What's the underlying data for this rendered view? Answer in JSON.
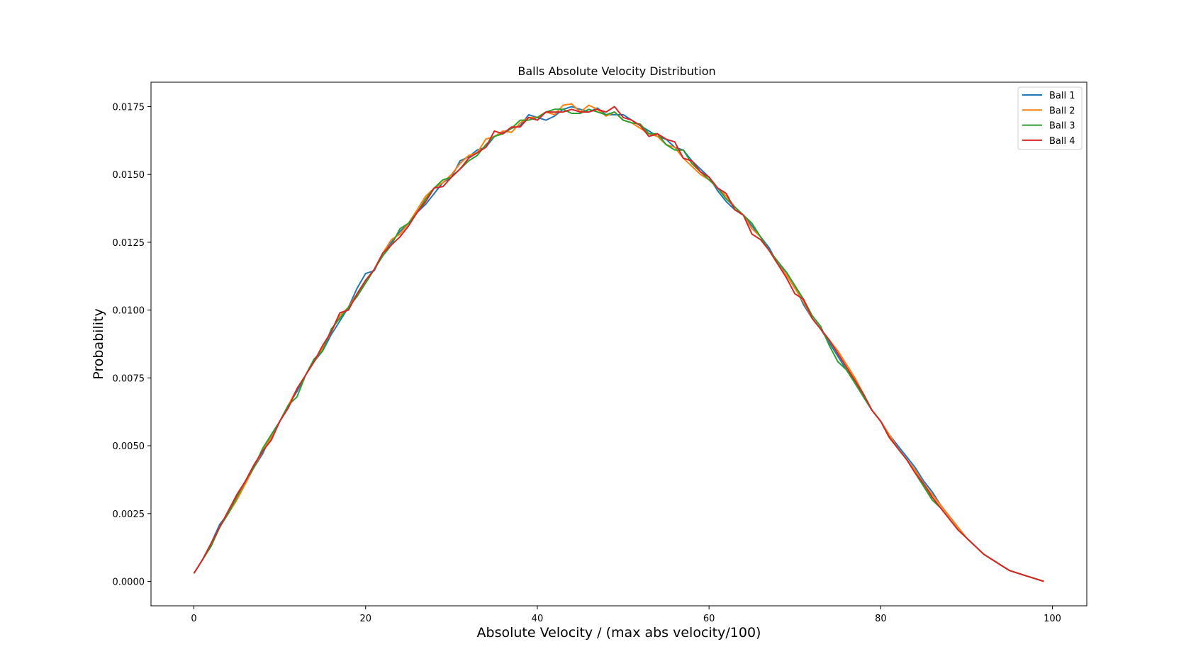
{
  "chart_data": {
    "type": "line",
    "title": "Balls Absolute Velocity Distribution",
    "xlabel": "Absolute Velocity / (max abs velocity/100)",
    "ylabel": "Probability",
    "xlim": [
      -5,
      104
    ],
    "ylim": [
      -0.0009,
      0.0184
    ],
    "xticks": [
      0,
      20,
      40,
      60,
      80,
      100
    ],
    "xtick_labels": [
      "0",
      "20",
      "40",
      "60",
      "80",
      "100"
    ],
    "yticks": [
      0,
      0.0025,
      0.005,
      0.0075,
      0.01,
      0.0125,
      0.015,
      0.0175
    ],
    "ytick_labels": [
      "0.0000",
      "0.0025",
      "0.0050",
      "0.0075",
      "0.0100",
      "0.0125",
      "0.0150",
      "0.0175"
    ],
    "grid": false,
    "legend_position": "top-right",
    "x": [
      0,
      1,
      2,
      3,
      4,
      5,
      6,
      7,
      8,
      9,
      10,
      11,
      12,
      13,
      14,
      15,
      16,
      17,
      18,
      19,
      20,
      21,
      22,
      23,
      24,
      25,
      26,
      27,
      28,
      29,
      30,
      31,
      32,
      33,
      34,
      35,
      36,
      37,
      38,
      39,
      40,
      41,
      42,
      43,
      44,
      45,
      46,
      47,
      48,
      49,
      50,
      51,
      52,
      53,
      54,
      55,
      56,
      57,
      58,
      59,
      60,
      61,
      62,
      63,
      64,
      65,
      66,
      67,
      68,
      69,
      70,
      71,
      72,
      73,
      74,
      75,
      76,
      77,
      78,
      79,
      80,
      81,
      82,
      83,
      84,
      85,
      86,
      87,
      88,
      89,
      90,
      91,
      92,
      93,
      94,
      95,
      96,
      97,
      98,
      99
    ],
    "series": [
      {
        "name": "Ball 1",
        "color": "#1f77b4",
        "values": [
          0.0003,
          0.0008,
          0.0014,
          0.0021,
          0.0025,
          0.0031,
          0.0037,
          0.0042,
          0.0047,
          0.0054,
          0.0059,
          0.0065,
          0.007,
          0.0076,
          0.0081,
          0.0085,
          0.0091,
          0.0096,
          0.0101,
          0.0108,
          0.01135,
          0.01145,
          0.0121,
          0.0125,
          0.0129,
          0.0132,
          0.0136,
          0.0139,
          0.0143,
          0.0147,
          0.0149,
          0.0155,
          0.01565,
          0.0159,
          0.016,
          0.0164,
          0.01655,
          0.0167,
          0.0168,
          0.0172,
          0.0171,
          0.017,
          0.01715,
          0.0174,
          0.0175,
          0.0174,
          0.0173,
          0.01745,
          0.0172,
          0.0172,
          0.0172,
          0.017,
          0.0168,
          0.0166,
          0.0164,
          0.0163,
          0.016,
          0.0159,
          0.0155,
          0.0152,
          0.0149,
          0.0144,
          0.014,
          0.0137,
          0.0135,
          0.0131,
          0.0127,
          0.0123,
          0.0117,
          0.0114,
          0.0109,
          0.0102,
          0.0097,
          0.0093,
          0.0088,
          0.0083,
          0.0078,
          0.0074,
          0.0068,
          0.0063,
          0.0059,
          0.0054,
          0.005,
          0.0046,
          0.0042,
          0.0037,
          0.0033,
          0.0028,
          0.0024,
          0.002,
          0.0016,
          0.0013,
          0.001,
          0.0008,
          0.0006,
          0.0004,
          0.0003,
          0.0002,
          0.0001,
          0.0
        ]
      },
      {
        "name": "Ball 2",
        "color": "#ff7f0e",
        "values": [
          0.0003,
          0.0008,
          0.0013,
          0.002,
          0.0025,
          0.003,
          0.0036,
          0.0042,
          0.0048,
          0.0053,
          0.0059,
          0.0065,
          0.0071,
          0.0076,
          0.0081,
          0.0086,
          0.0092,
          0.0098,
          0.0101,
          0.0106,
          0.011,
          0.0115,
          0.0121,
          0.0126,
          0.0128,
          0.0132,
          0.0137,
          0.0142,
          0.0145,
          0.0147,
          0.015,
          0.0154,
          0.0157,
          0.0158,
          0.0163,
          0.0164,
          0.0166,
          0.01655,
          0.0169,
          0.0171,
          0.0171,
          0.0173,
          0.0172,
          0.01755,
          0.0176,
          0.0173,
          0.01755,
          0.0174,
          0.01715,
          0.0173,
          0.017,
          0.0169,
          0.0167,
          0.0165,
          0.0164,
          0.0161,
          0.016,
          0.0156,
          0.0153,
          0.015,
          0.0148,
          0.0145,
          0.0142,
          0.0138,
          0.0135,
          0.013,
          0.0127,
          0.0122,
          0.0117,
          0.0113,
          0.0108,
          0.0103,
          0.0097,
          0.0093,
          0.0089,
          0.0085,
          0.008,
          0.0075,
          0.0069,
          0.0063,
          0.0059,
          0.0054,
          0.0049,
          0.0045,
          0.0041,
          0.0036,
          0.0032,
          0.0028,
          0.0024,
          0.002,
          0.0016,
          0.0013,
          0.001,
          0.0008,
          0.0006,
          0.0004,
          0.0003,
          0.0002,
          0.0001,
          0.0
        ]
      },
      {
        "name": "Ball 3",
        "color": "#2ca02c",
        "values": [
          0.0003,
          0.0008,
          0.0013,
          0.002,
          0.0025,
          0.0031,
          0.0037,
          0.0042,
          0.0049,
          0.0054,
          0.0059,
          0.0065,
          0.0068,
          0.0076,
          0.0082,
          0.0085,
          0.0093,
          0.0097,
          0.0101,
          0.0105,
          0.011,
          0.0115,
          0.012,
          0.0124,
          0.013,
          0.0132,
          0.0136,
          0.0141,
          0.0145,
          0.0148,
          0.0149,
          0.0152,
          0.0155,
          0.0157,
          0.0161,
          0.0164,
          0.0165,
          0.0167,
          0.017,
          0.017,
          0.0171,
          0.0173,
          0.0174,
          0.0174,
          0.01725,
          0.01725,
          0.0174,
          0.0173,
          0.0172,
          0.0173,
          0.017,
          0.0169,
          0.01685,
          0.0165,
          0.0165,
          0.0161,
          0.0159,
          0.0159,
          0.0154,
          0.0151,
          0.0148,
          0.0145,
          0.0141,
          0.0138,
          0.0135,
          0.0132,
          0.0127,
          0.0122,
          0.0118,
          0.0114,
          0.0109,
          0.0104,
          0.0098,
          0.0094,
          0.0087,
          0.0081,
          0.0078,
          0.0073,
          0.0068,
          0.0063,
          0.0059,
          0.0053,
          0.0049,
          0.0045,
          0.004,
          0.0035,
          0.003,
          0.0027,
          0.0023,
          0.0019,
          0.0016,
          0.0013,
          0.001,
          0.0008,
          0.0006,
          0.0004,
          0.0003,
          0.0002,
          0.0001,
          0.0
        ]
      },
      {
        "name": "Ball 4",
        "color": "#d62728",
        "values": [
          0.0003,
          0.0008,
          0.0014,
          0.002,
          0.0026,
          0.0032,
          0.0037,
          0.0043,
          0.0048,
          0.0052,
          0.0059,
          0.0064,
          0.0071,
          0.0076,
          0.0081,
          0.0087,
          0.0092,
          0.0099,
          0.01,
          0.0106,
          0.0111,
          0.0115,
          0.0121,
          0.0124,
          0.0127,
          0.0131,
          0.0136,
          0.014,
          0.0145,
          0.01455,
          0.0149,
          0.0152,
          0.0156,
          0.0158,
          0.016,
          0.0166,
          0.0165,
          0.01675,
          0.01675,
          0.0171,
          0.017,
          0.0173,
          0.0173,
          0.0173,
          0.0174,
          0.0173,
          0.0173,
          0.0174,
          0.0173,
          0.0175,
          0.0171,
          0.017,
          0.0168,
          0.0164,
          0.0165,
          0.0163,
          0.0162,
          0.0156,
          0.0155,
          0.0151,
          0.0149,
          0.0145,
          0.0143,
          0.0137,
          0.0135,
          0.0128,
          0.0126,
          0.0122,
          0.0117,
          0.0112,
          0.0106,
          0.0104,
          0.0097,
          0.0093,
          0.0089,
          0.0084,
          0.0079,
          0.0074,
          0.0069,
          0.0063,
          0.0059,
          0.0053,
          0.0049,
          0.0045,
          0.004,
          0.0036,
          0.0031,
          0.0027,
          0.0023,
          0.0019,
          0.0016,
          0.0013,
          0.001,
          0.0008,
          0.0006,
          0.0004,
          0.0003,
          0.0002,
          0.0001,
          0.0
        ]
      }
    ]
  }
}
